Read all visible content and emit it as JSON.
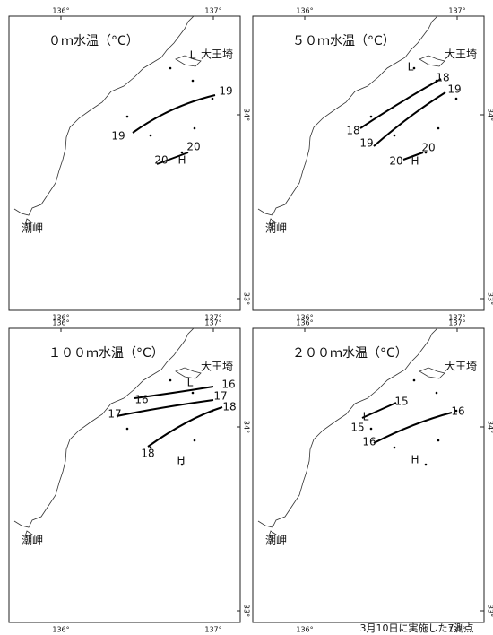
{
  "axis_labels": {
    "lon": [
      "136°",
      "137°"
    ],
    "lat": [
      "34°",
      "33°"
    ]
  },
  "places": {
    "cape": "大王埼",
    "misaki": "潮岬"
  },
  "panels": [
    {
      "title": "０ｍ水温（°C）",
      "contour_labels": [
        "19",
        "19",
        "20",
        "20"
      ],
      "low": "L",
      "high": "H"
    },
    {
      "title": "５０ｍ水温（°C）",
      "contour_labels": [
        "18",
        "18",
        "19",
        "19",
        "20",
        "20"
      ],
      "low": "L",
      "high": "H"
    },
    {
      "title": "１００ｍ水温（°C）",
      "contour_labels": [
        "16",
        "16",
        "17",
        "17",
        "18",
        "18"
      ],
      "low": "L",
      "high": "H"
    },
    {
      "title": "２００ｍ水温（°C）",
      "contour_labels": [
        "15",
        "15",
        "16",
        "16"
      ],
      "low": "L",
      "high": "H"
    }
  ],
  "caption": "3月10日に実施した7測点"
}
